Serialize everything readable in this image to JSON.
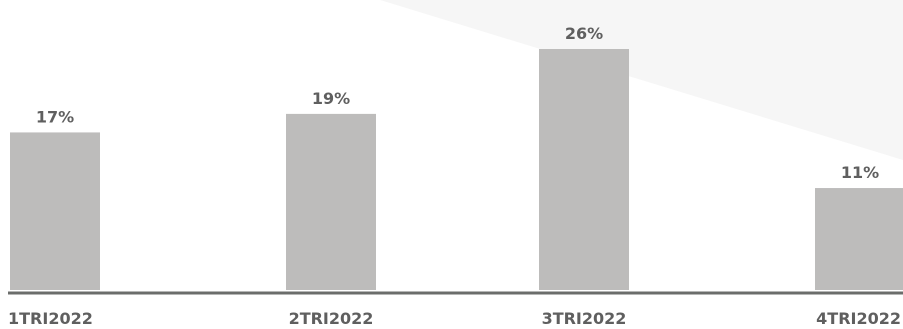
{
  "chart_data": {
    "type": "bar",
    "title": "",
    "xlabel": "",
    "ylabel": "",
    "categories": [
      "1TRI2022",
      "2TRI2022",
      "3TRI2022",
      "4TRI2022"
    ],
    "values": [
      17,
      19,
      26,
      11
    ],
    "value_labels": [
      "17%",
      "19%",
      "26%",
      "11%"
    ],
    "unit": "%",
    "ylim": [
      0,
      26
    ],
    "grid": false,
    "legend": "none",
    "colors": {
      "bar": "#bdbcbb",
      "axis": "#6b6d6b",
      "text": "#5f5f5f",
      "background_shade": "#f6f6f6"
    }
  }
}
